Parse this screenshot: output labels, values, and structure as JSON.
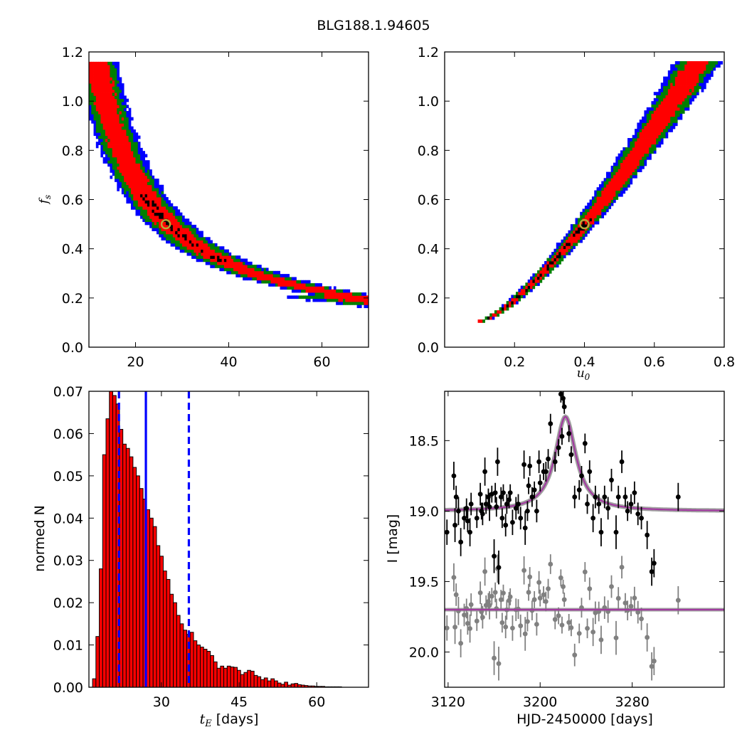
{
  "title": "BLG188.1.94605",
  "colors": {
    "blue": "#0000ff",
    "green": "#007f00",
    "red": "#ff0000",
    "black": "#000000",
    "marker_ring": "#b8a83a",
    "data_gray": "#808080",
    "model_purple": "#a23aa0",
    "model_gray": "#808080"
  },
  "chart_data": [
    {
      "id": "fs_vs_tE",
      "type": "heatmap",
      "xlabel": "",
      "ylabel": "f_s",
      "xlim": [
        10,
        70
      ],
      "ylim": [
        0.0,
        1.2
      ],
      "xticks": [
        "20",
        "40",
        "60"
      ],
      "yticks": [
        "0.0",
        "0.2",
        "0.4",
        "0.6",
        "0.8",
        "1.0",
        "1.2"
      ],
      "relation": "f_s * t_E ≈ 13.3 (curved band)",
      "levels": [
        "blue",
        "green",
        "red",
        "black"
      ],
      "best_fit": {
        "tE": 26.5,
        "fs": 0.5
      }
    },
    {
      "id": "fs_vs_u0",
      "type": "heatmap",
      "xlabel": "u_0",
      "ylabel": "",
      "xlim": [
        0.0,
        0.8
      ],
      "ylim": [
        0.0,
        1.2
      ],
      "xticks": [
        "0.2",
        "0.4",
        "0.6",
        "0.8"
      ],
      "yticks": [
        "0.0",
        "0.2",
        "0.4",
        "0.6",
        "0.8",
        "1.0",
        "1.2"
      ],
      "relation": "f_s rises from 0.1 at u0=0.11 to 1.15 at u0=0.73",
      "levels": [
        "blue",
        "green",
        "red",
        "black"
      ],
      "best_fit": {
        "u0": 0.4,
        "fs": 0.5
      }
    },
    {
      "id": "tE_histogram",
      "type": "bar",
      "xlabel": "t_E [days]",
      "ylabel": "normed N",
      "xlim": [
        16,
        70
      ],
      "ylim": [
        0.0,
        0.07
      ],
      "xticks": [
        "30",
        "45",
        "60"
      ],
      "yticks": [
        "0.00",
        "0.01",
        "0.02",
        "0.03",
        "0.04",
        "0.05",
        "0.06",
        "0.07"
      ],
      "bin_width": 0.65,
      "bin_start": 16.7,
      "values": [
        0.002,
        0.012,
        0.028,
        0.055,
        0.0635,
        0.075,
        0.069,
        0.067,
        0.061,
        0.0575,
        0.0565,
        0.0545,
        0.052,
        0.05,
        0.047,
        0.0445,
        0.042,
        0.04,
        0.038,
        0.0335,
        0.031,
        0.0275,
        0.0255,
        0.022,
        0.02,
        0.017,
        0.015,
        0.0135,
        0.0125,
        0.013,
        0.011,
        0.01,
        0.0095,
        0.009,
        0.0085,
        0.0075,
        0.006,
        0.0045,
        0.005,
        0.0045,
        0.005,
        0.0048,
        0.0047,
        0.004,
        0.003,
        0.0035,
        0.004,
        0.0038,
        0.0028,
        0.0025,
        0.0018,
        0.0022,
        0.0015,
        0.002,
        0.0015,
        0.001,
        0.0007,
        0.0012,
        0.0005,
        0.0008,
        0.0009,
        0.0006,
        0.0005,
        0.0004,
        0.0003,
        0.0003,
        0.0002,
        0.0002,
        0.0002,
        0.0001,
        0.0001,
        0.0001,
        0.0001,
        0.0001
      ],
      "vlines": [
        {
          "x": 21.8,
          "style": "dashed"
        },
        {
          "x": 27.0,
          "style": "solid"
        },
        {
          "x": 35.3,
          "style": "dashed"
        }
      ]
    },
    {
      "id": "lightcurve",
      "type": "scatter",
      "xlabel": "HJD-2450000 [days]",
      "ylabel": "I [mag]",
      "xlim": [
        3117,
        3360
      ],
      "ylim": [
        20.25,
        18.15
      ],
      "inverted_y": true,
      "xticks": [
        "3120",
        "3200",
        "3280"
      ],
      "yticks": [
        "18.5",
        "19.0",
        "19.5",
        "20.0"
      ],
      "model": {
        "t0": 3222,
        "baseline": 19.0,
        "peak": 18.33,
        "width": 11
      },
      "residual_baseline": 19.7,
      "data": [
        {
          "x": 3119,
          "y": 19.15,
          "e": 0.09
        },
        {
          "x": 3125,
          "y": 18.75,
          "e": 0.1
        },
        {
          "x": 3126,
          "y": 19.1,
          "e": 0.12
        },
        {
          "x": 3127,
          "y": 18.9,
          "e": 0.08
        },
        {
          "x": 3129,
          "y": 19.0,
          "e": 0.1
        },
        {
          "x": 3131,
          "y": 19.22,
          "e": 0.1
        },
        {
          "x": 3134,
          "y": 19.05,
          "e": 0.08
        },
        {
          "x": 3136,
          "y": 18.98,
          "e": 0.07
        },
        {
          "x": 3137,
          "y": 19.07,
          "e": 0.08
        },
        {
          "x": 3139,
          "y": 19.15,
          "e": 0.1
        },
        {
          "x": 3140,
          "y": 18.95,
          "e": 0.08
        },
        {
          "x": 3145,
          "y": 19.05,
          "e": 0.07
        },
        {
          "x": 3148,
          "y": 18.88,
          "e": 0.08
        },
        {
          "x": 3149,
          "y": 19.0,
          "e": 0.06
        },
        {
          "x": 3150,
          "y": 19.02,
          "e": 0.08
        },
        {
          "x": 3152,
          "y": 18.72,
          "e": 0.1
        },
        {
          "x": 3153,
          "y": 18.95,
          "e": 0.07
        },
        {
          "x": 3155,
          "y": 18.9,
          "e": 0.06
        },
        {
          "x": 3156,
          "y": 18.97,
          "e": 0.1
        },
        {
          "x": 3158,
          "y": 18.88,
          "e": 0.06
        },
        {
          "x": 3160,
          "y": 19.32,
          "e": 0.12
        },
        {
          "x": 3161,
          "y": 18.87,
          "e": 0.07
        },
        {
          "x": 3162,
          "y": 18.97,
          "e": 0.07
        },
        {
          "x": 3163,
          "y": 18.65,
          "e": 0.1
        },
        {
          "x": 3164,
          "y": 19.4,
          "e": 0.12
        },
        {
          "x": 3166,
          "y": 18.9,
          "e": 0.07
        },
        {
          "x": 3167,
          "y": 19.05,
          "e": 0.07
        },
        {
          "x": 3168,
          "y": 18.87,
          "e": 0.06
        },
        {
          "x": 3170,
          "y": 19.1,
          "e": 0.08
        },
        {
          "x": 3171,
          "y": 18.95,
          "e": 0.07
        },
        {
          "x": 3173,
          "y": 18.92,
          "e": 0.06
        },
        {
          "x": 3174,
          "y": 18.87,
          "e": 0.06
        },
        {
          "x": 3176,
          "y": 19.08,
          "e": 0.09
        },
        {
          "x": 3179,
          "y": 18.98,
          "e": 0.08
        },
        {
          "x": 3181,
          "y": 18.95,
          "e": 0.07
        },
        {
          "x": 3183,
          "y": 19.05,
          "e": 0.08
        },
        {
          "x": 3186,
          "y": 18.67,
          "e": 0.1
        },
        {
          "x": 3187,
          "y": 19.12,
          "e": 0.12
        },
        {
          "x": 3189,
          "y": 19.0,
          "e": 0.07
        },
        {
          "x": 3190,
          "y": 18.82,
          "e": 0.06
        },
        {
          "x": 3191,
          "y": 18.68,
          "e": 0.07
        },
        {
          "x": 3193,
          "y": 18.9,
          "e": 0.07
        },
        {
          "x": 3195,
          "y": 18.85,
          "e": 0.06
        },
        {
          "x": 3197,
          "y": 19.0,
          "e": 0.08
        },
        {
          "x": 3199,
          "y": 18.65,
          "e": 0.08
        },
        {
          "x": 3200,
          "y": 18.8,
          "e": 0.06
        },
        {
          "x": 3203,
          "y": 18.72,
          "e": 0.06
        },
        {
          "x": 3205,
          "y": 18.72,
          "e": 0.07
        },
        {
          "x": 3207,
          "y": 18.63,
          "e": 0.07
        },
        {
          "x": 3209,
          "y": 18.38,
          "e": 0.07
        },
        {
          "x": 3213,
          "y": 18.65,
          "e": 0.07
        },
        {
          "x": 3216,
          "y": 18.55,
          "e": 0.06
        },
        {
          "x": 3218,
          "y": 18.17,
          "e": 0.06
        },
        {
          "x": 3219,
          "y": 18.47,
          "e": 0.06
        },
        {
          "x": 3220,
          "y": 18.2,
          "e": 0.05
        },
        {
          "x": 3221,
          "y": 18.26,
          "e": 0.05
        },
        {
          "x": 3225,
          "y": 18.45,
          "e": 0.06
        },
        {
          "x": 3227,
          "y": 18.6,
          "e": 0.06
        },
        {
          "x": 3230,
          "y": 18.9,
          "e": 0.08
        },
        {
          "x": 3234,
          "y": 18.85,
          "e": 0.07
        },
        {
          "x": 3236,
          "y": 18.75,
          "e": 0.07
        },
        {
          "x": 3239,
          "y": 18.52,
          "e": 0.07
        },
        {
          "x": 3241,
          "y": 18.95,
          "e": 0.07
        },
        {
          "x": 3243,
          "y": 18.72,
          "e": 0.08
        },
        {
          "x": 3246,
          "y": 19.05,
          "e": 0.1
        },
        {
          "x": 3248,
          "y": 18.9,
          "e": 0.08
        },
        {
          "x": 3251,
          "y": 18.95,
          "e": 0.07
        },
        {
          "x": 3253,
          "y": 19.15,
          "e": 0.1
        },
        {
          "x": 3256,
          "y": 18.9,
          "e": 0.08
        },
        {
          "x": 3259,
          "y": 18.98,
          "e": 0.08
        },
        {
          "x": 3262,
          "y": 18.78,
          "e": 0.08
        },
        {
          "x": 3266,
          "y": 19.15,
          "e": 0.12
        },
        {
          "x": 3268,
          "y": 18.9,
          "e": 0.08
        },
        {
          "x": 3271,
          "y": 18.65,
          "e": 0.08
        },
        {
          "x": 3274,
          "y": 18.9,
          "e": 0.07
        },
        {
          "x": 3276,
          "y": 19.0,
          "e": 0.07
        },
        {
          "x": 3279,
          "y": 18.95,
          "e": 0.07
        },
        {
          "x": 3282,
          "y": 18.87,
          "e": 0.08
        },
        {
          "x": 3285,
          "y": 19.02,
          "e": 0.08
        },
        {
          "x": 3288,
          "y": 19.05,
          "e": 0.08
        },
        {
          "x": 3293,
          "y": 19.17,
          "e": 0.1
        },
        {
          "x": 3297,
          "y": 19.43,
          "e": 0.1
        },
        {
          "x": 3299,
          "y": 19.37,
          "e": 0.1
        },
        {
          "x": 3320,
          "y": 18.9,
          "e": 0.1
        }
      ]
    }
  ]
}
